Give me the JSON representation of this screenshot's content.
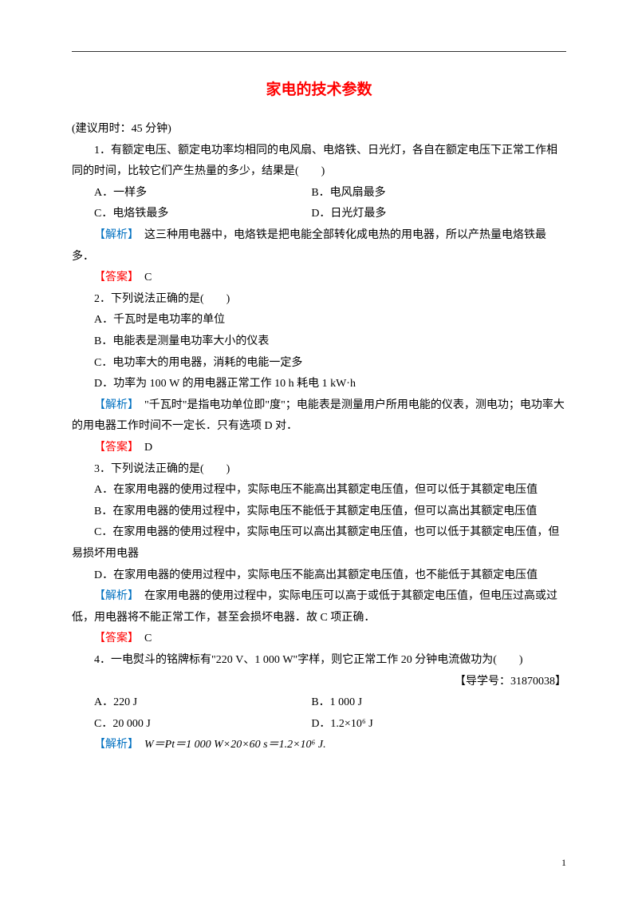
{
  "title": "家电的技术参数",
  "timeNote": "(建议用时：45 分钟)",
  "q1": {
    "stem": "1．有额定电压、额定电功率均相同的电风扇、电烙铁、日光灯，各自在额定电压下正常工作相同的时间，比较它们产生热量的多少，结果是(　　)",
    "optA": "A．一样多",
    "optB": "B．电风扇最多",
    "optC": "C．电烙铁最多",
    "optD": "D．日光灯最多",
    "analysisLabel": "【解析】",
    "analysis": "　这三种用电器中，电烙铁是把电能全部转化成电热的用电器，所以产热量电烙铁最多．",
    "answerLabel": "【答案】",
    "answer": "　C"
  },
  "q2": {
    "stem": "2．下列说法正确的是(　　)",
    "optA": "A．千瓦时是电功率的单位",
    "optB": "B．电能表是测量电功率大小的仪表",
    "optC": "C．电功率大的用电器，消耗的电能一定多",
    "optD": "D．功率为 100 W 的用电器正常工作 10 h 耗电 1 kW·h",
    "analysisLabel": "【解析】",
    "analysis": "　\"千瓦时\"是指电功单位即\"度\"；电能表是测量用户所用电能的仪表，测电功；电功率大的用电器工作时间不一定长．只有选项 D 对．",
    "answerLabel": "【答案】",
    "answer": "　D"
  },
  "q3": {
    "stem": "3．下列说法正确的是(　　)",
    "optA": "A．在家用电器的使用过程中，实际电压不能高出其额定电压值，但可以低于其额定电压值",
    "optB": "B．在家用电器的使用过程中，实际电压不能低于其额定电压值，但可以高出其额定电压值",
    "optC": "C．在家用电器的使用过程中，实际电压可以高出其额定电压值，也可以低于其额定电压值，但易损坏用电器",
    "optD": "D．在家用电器的使用过程中，实际电压不能高出其额定电压值，也不能低于其额定电压值",
    "analysisLabel": "【解析】",
    "analysis": "　在家用电器的使用过程中，实际电压可以高于或低于其额定电压值，但电压过高或过低，用电器将不能正常工作，甚至会损坏电器．故 C 项正确．",
    "answerLabel": "【答案】",
    "answer": "　C"
  },
  "q4": {
    "stem": "4．一电熨斗的铭牌标有\"220 V、1 000 W\"字样，则它正常工作 20 分钟电流做功为(　　)",
    "refNum": "【导学号：31870038】",
    "optA": "A．220 J",
    "optB": "B．1 000 J",
    "optC": "C．20 000 J",
    "optD": "D．1.2×10⁶ J",
    "analysisLabel": "【解析】",
    "analysis": "　W＝Pt＝1 000 W×20×60 s＝1.2×10⁶ J."
  },
  "pageNum": "1"
}
